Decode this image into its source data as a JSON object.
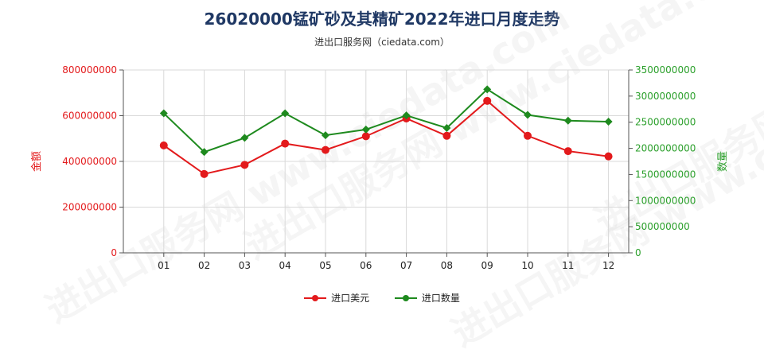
{
  "title": "26020000锰矿砂及其精矿2022年进口月度走势",
  "subtitle": "进出口服务网（ciedata.com）",
  "watermark": "进出口服务网 www.ciedata.com",
  "chart_data": {
    "type": "line",
    "categories": [
      "01",
      "02",
      "03",
      "04",
      "05",
      "06",
      "07",
      "08",
      "09",
      "10",
      "11",
      "12"
    ],
    "left_axis": {
      "label": "金额",
      "range": [
        0,
        800000000
      ],
      "ticks": [
        0,
        200000000,
        400000000,
        600000000,
        800000000
      ],
      "tick_labels": [
        "0",
        "200000000",
        "400000000",
        "600000000",
        "800000000"
      ],
      "color": "#e31a1c"
    },
    "right_axis": {
      "label": "数量",
      "range": [
        0,
        3500000000
      ],
      "ticks": [
        0,
        500000000,
        1000000000,
        1500000000,
        2000000000,
        2500000000,
        3000000000,
        3500000000
      ],
      "tick_labels": [
        "0",
        "500000000",
        "1000000000",
        "1500000000",
        "2000000000",
        "2500000000",
        "3000000000",
        "3500000000"
      ],
      "color": "#2ca02c"
    },
    "series": [
      {
        "name": "进口美元",
        "axis": "left",
        "color": "#e31a1c",
        "values": [
          470000000,
          345000000,
          385000000,
          478000000,
          450000000,
          510000000,
          588000000,
          512000000,
          665000000,
          512000000,
          445000000,
          422000000
        ]
      },
      {
        "name": "进口数量",
        "axis": "right",
        "color": "#1e8a1e",
        "values": [
          2670000000,
          1930000000,
          2200000000,
          2670000000,
          2250000000,
          2360000000,
          2630000000,
          2390000000,
          3130000000,
          2640000000,
          2530000000,
          2510000000
        ]
      }
    ],
    "grid": true,
    "legend_position": "bottom"
  }
}
